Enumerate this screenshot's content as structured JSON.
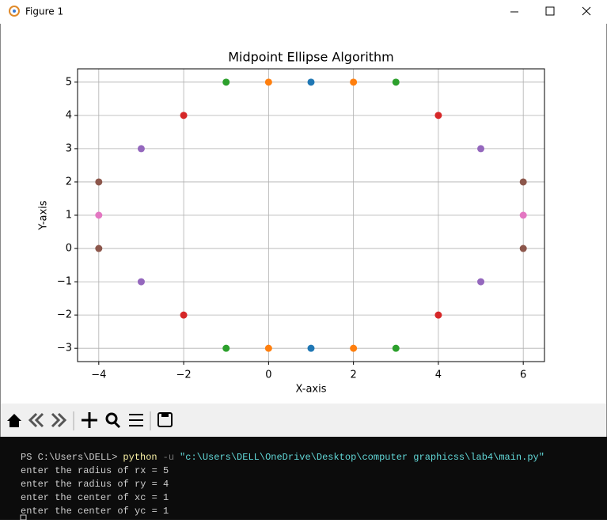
{
  "window": {
    "title": "Figure 1"
  },
  "chart_data": {
    "type": "scatter",
    "title": "Midpoint Ellipse Algorithm",
    "x_label": "X-axis",
    "y_label": "Y-axis",
    "series": [
      {
        "color": "#1f77b4",
        "x": [
          1,
          1
        ],
        "y": [
          5,
          -3
        ]
      },
      {
        "color": "#ff7f0e",
        "x": [
          0,
          2,
          0,
          2
        ],
        "y": [
          5,
          5,
          -3,
          -3
        ]
      },
      {
        "color": "#2ca02c",
        "x": [
          -1,
          3,
          -1,
          3
        ],
        "y": [
          5,
          5,
          -3,
          -3
        ]
      },
      {
        "color": "#d62728",
        "x": [
          -2,
          4,
          -2,
          4
        ],
        "y": [
          4,
          4,
          -2,
          -2
        ]
      },
      {
        "color": "#9467bd",
        "x": [
          -3,
          5,
          -3,
          5
        ],
        "y": [
          3,
          3,
          -1,
          -1
        ]
      },
      {
        "color": "#8c564b",
        "x": [
          -4,
          6,
          -4,
          6
        ],
        "y": [
          2,
          2,
          0,
          0
        ]
      },
      {
        "color": "#e377c2",
        "x": [
          -4,
          6
        ],
        "y": [
          1,
          1
        ]
      }
    ],
    "xlim": [
      -4.5,
      6.5
    ],
    "ylim": [
      -3.4,
      5.4
    ],
    "xticks": [
      {
        "value": -4,
        "label": "−4"
      },
      {
        "value": -2,
        "label": "−2"
      },
      0,
      2,
      4,
      6
    ],
    "yticks": [
      {
        "value": -3,
        "label": "−3"
      },
      {
        "value": -2,
        "label": "−2"
      },
      {
        "value": -1,
        "label": "−1"
      },
      0,
      1,
      2,
      3,
      4,
      5
    ],
    "grid": true
  },
  "terminal": {
    "prompt": "PS C:\\Users\\DELL>",
    "command": "python",
    "flag": "-u",
    "argument": "\"c:\\Users\\DELL\\OneDrive\\Desktop\\computer graphicss\\lab4\\main.py\"",
    "output": [
      "enter the radius of rx = 5",
      "enter the radius of ry = 4",
      "enter the center of xc = 1",
      "enter the center of yc = 1"
    ]
  }
}
